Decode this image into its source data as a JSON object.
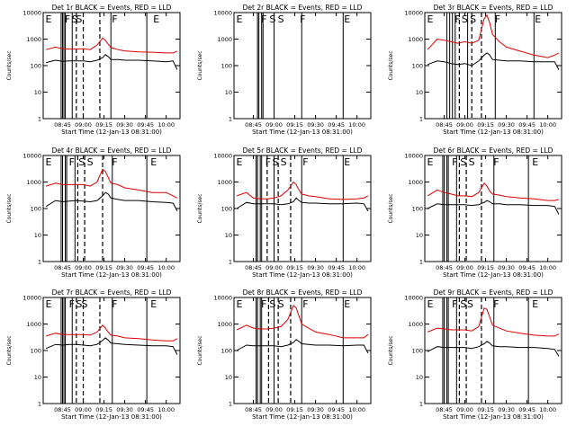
{
  "chart_data": {
    "type": "line",
    "grid": "3x3",
    "ylabel": "Counts/sec",
    "xlabel": "Start Time (12-Jan-13 08:31:00)",
    "yscale": "log",
    "ylim": [
      1,
      10000
    ],
    "xlim": [
      "08:31",
      "10:10"
    ],
    "y_ticks": [
      "1",
      "10",
      "100",
      "1000",
      "10000"
    ],
    "x_ticks": [
      "08:45",
      "09:00",
      "09:15",
      "09:30",
      "09:45",
      "10:00"
    ],
    "time_axis": [
      "08:33",
      "08:40",
      "08:45",
      "08:50",
      "08:55",
      "09:00",
      "09:05",
      "09:10",
      "09:14",
      "09:16",
      "09:18",
      "09:20",
      "09:25",
      "09:30",
      "09:40",
      "09:50",
      "10:00",
      "10:05",
      "10:08"
    ],
    "panels": [
      {
        "title": "Det 1r BLACK = Events, RED = LLD",
        "markers": [
          "E",
          "F",
          "S",
          "S",
          "F",
          "E"
        ],
        "marker_times": [
          "08:32",
          "08:46",
          "08:51",
          "08:54",
          "09:20",
          "09:50"
        ],
        "solid_lines": [
          "08:44",
          "08:45",
          "08:46",
          "08:47",
          "08:52",
          "09:20",
          "09:46"
        ],
        "dashed_lines": [
          "08:55",
          "09:00",
          "09:12"
        ],
        "series": [
          {
            "name": "BLACK",
            "color": "#000000",
            "values": [
              130,
              160,
              145,
              150,
              150,
              150,
              140,
              160,
              200,
              260,
              220,
              170,
              170,
              160,
              160,
              150,
              140,
              150,
              70
            ]
          },
          {
            "name": "RED",
            "color": "#dd0000",
            "values": [
              400,
              500,
              430,
              420,
              420,
              430,
              400,
              600,
              1100,
              900,
              650,
              480,
              400,
              360,
              330,
              320,
              300,
              300,
              350
            ]
          }
        ]
      },
      {
        "title": "Det 2r BLACK = Events, RED = LLD",
        "markers": [
          "E",
          "F",
          "S",
          "S",
          "F",
          "E"
        ],
        "marker_times": [
          "08:32",
          "08:50",
          "08:56",
          "09:02",
          "09:18",
          "09:50"
        ],
        "solid_lines": [
          "08:48",
          "08:49",
          "08:51",
          "08:52",
          "09:00",
          "09:20",
          "09:50"
        ],
        "dashed_lines": [],
        "series": []
      },
      {
        "title": "Det 3r BLACK = Events, RED = LLD",
        "markers": [
          "E",
          "F",
          "S",
          "S",
          "F",
          "E"
        ],
        "marker_times": [
          "08:32",
          "08:52",
          "08:57",
          "09:03",
          "09:21",
          "09:50"
        ],
        "solid_lines": [
          "08:47",
          "08:49",
          "08:51",
          "08:53",
          "09:02",
          "09:22",
          "09:50"
        ],
        "dashed_lines": [
          "08:56",
          "09:05",
          "09:12"
        ],
        "series": [
          {
            "name": "BLACK",
            "color": "#000000",
            "values": [
              110,
              150,
              140,
              120,
              110,
              120,
              100,
              150,
              250,
              300,
              250,
              170,
              160,
              150,
              150,
              140,
              140,
              140,
              70
            ]
          },
          {
            "name": "RED",
            "color": "#dd0000",
            "values": [
              400,
              1000,
              900,
              800,
              700,
              800,
              700,
              900,
              6000,
              8000,
              4000,
              1500,
              800,
              500,
              350,
              250,
              200,
              250,
              300
            ]
          }
        ]
      },
      {
        "title": "Det 4r BLACK = Events, RED = LLD",
        "markers": [
          "E",
          "F",
          "S",
          "S",
          "F",
          "E"
        ],
        "marker_times": [
          "08:32",
          "08:49",
          "08:56",
          "09:02",
          "09:20",
          "09:48"
        ],
        "solid_lines": [
          "08:44",
          "08:45",
          "08:47",
          "08:48",
          "08:54",
          "09:21",
          "09:46"
        ],
        "dashed_lines": [
          "08:56",
          "09:01",
          "09:14"
        ],
        "series": [
          {
            "name": "BLACK",
            "color": "#000000",
            "values": [
              120,
              200,
              180,
              190,
              200,
              190,
              180,
              200,
              300,
              400,
              350,
              250,
              220,
              200,
              200,
              180,
              170,
              160,
              80
            ]
          },
          {
            "name": "RED",
            "color": "#dd0000",
            "values": [
              700,
              900,
              800,
              800,
              800,
              800,
              700,
              1000,
              3000,
              2500,
              1500,
              900,
              800,
              600,
              500,
              400,
              400,
              300,
              250
            ]
          }
        ]
      },
      {
        "title": "Det 5r BLACK = Events, RED = LLD",
        "markers": [
          "E",
          "F",
          "S",
          "S",
          "F",
          "E"
        ],
        "marker_times": [
          "08:32",
          "08:53",
          "08:58",
          "09:04",
          "09:20",
          "09:50"
        ],
        "solid_lines": [
          "08:47",
          "08:48",
          "08:50",
          "08:51",
          "09:00",
          "09:20",
          "09:50"
        ],
        "dashed_lines": [
          "08:55",
          "09:03",
          "09:12"
        ],
        "series": [
          {
            "name": "BLACK",
            "color": "#000000",
            "values": [
              100,
              170,
              150,
              150,
              150,
              150,
              140,
              150,
              180,
              250,
              200,
              170,
              160,
              160,
              150,
              150,
              160,
              150,
              80
            ]
          },
          {
            "name": "RED",
            "color": "#dd0000",
            "values": [
              300,
              400,
              250,
              230,
              230,
              250,
              300,
              500,
              1000,
              800,
              500,
              350,
              300,
              280,
              230,
              220,
              230,
              250,
              300
            ]
          }
        ]
      },
      {
        "title": "Det 6r BLACK = Events, RED = LLD",
        "markers": [
          "E",
          "F",
          "S",
          "S",
          "F",
          "E"
        ],
        "marker_times": [
          "08:32",
          "08:50",
          "08:56",
          "09:02",
          "09:20",
          "09:48"
        ],
        "solid_lines": [
          "08:44",
          "08:45",
          "08:47",
          "08:48",
          "08:54",
          "09:21",
          "09:46"
        ],
        "dashed_lines": [
          "08:56",
          "09:01",
          "09:12"
        ],
        "series": [
          {
            "name": "BLACK",
            "color": "#000000",
            "values": [
              100,
              150,
              140,
              140,
              140,
              140,
              130,
              140,
              170,
              200,
              180,
              150,
              150,
              140,
              140,
              130,
              130,
              120,
              60
            ]
          },
          {
            "name": "RED",
            "color": "#dd0000",
            "values": [
              300,
              500,
              400,
              350,
              300,
              300,
              280,
              400,
              900,
              700,
              450,
              350,
              320,
              280,
              250,
              230,
              200,
              200,
              220
            ]
          }
        ]
      },
      {
        "title": "Det 7r BLACK = Events, RED = LLD",
        "markers": [
          "E",
          "F",
          "S",
          "S",
          "F",
          "E"
        ],
        "marker_times": [
          "08:32",
          "08:49",
          "08:54",
          "08:58",
          "09:20",
          "09:48"
        ],
        "solid_lines": [
          "08:44",
          "08:45",
          "08:46",
          "08:47",
          "08:52",
          "09:21",
          "09:46"
        ],
        "dashed_lines": [
          "08:55",
          "09:00",
          "09:12"
        ],
        "series": [
          {
            "name": "BLACK",
            "color": "#000000",
            "values": [
              120,
              170,
              160,
              170,
              170,
              160,
              150,
              170,
              240,
              300,
              250,
              190,
              180,
              170,
              160,
              150,
              150,
              140,
              70
            ]
          },
          {
            "name": "RED",
            "color": "#dd0000",
            "values": [
              350,
              450,
              400,
              400,
              400,
              400,
              380,
              500,
              900,
              700,
              500,
              380,
              350,
              300,
              280,
              250,
              230,
              230,
              280
            ]
          }
        ]
      },
      {
        "title": "Det 8r BLACK = Events, RED = LLD",
        "markers": [
          "E",
          "F",
          "S",
          "S",
          "F",
          "E"
        ],
        "marker_times": [
          "08:32",
          "08:50",
          "08:56",
          "09:02",
          "09:20",
          "09:50"
        ],
        "solid_lines": [
          "08:47",
          "08:48",
          "08:50",
          "08:51",
          "09:00",
          "09:20",
          "09:50"
        ],
        "dashed_lines": [
          "08:56",
          "09:03",
          "09:12"
        ],
        "series": [
          {
            "name": "BLACK",
            "color": "#000000",
            "values": [
              100,
              160,
              150,
              150,
              150,
              150,
              140,
              160,
              200,
              260,
              220,
              180,
              170,
              160,
              160,
              150,
              160,
              160,
              80
            ]
          },
          {
            "name": "RED",
            "color": "#dd0000",
            "values": [
              600,
              900,
              700,
              650,
              650,
              700,
              800,
              1500,
              5000,
              4000,
              2000,
              1000,
              700,
              500,
              400,
              300,
              300,
              300,
              400
            ]
          }
        ]
      },
      {
        "title": "Det 9r BLACK = Events, RED = LLD",
        "markers": [
          "E",
          "F",
          "S",
          "S",
          "F",
          "E"
        ],
        "marker_times": [
          "08:32",
          "08:50",
          "08:56",
          "09:01",
          "09:20",
          "09:48"
        ],
        "solid_lines": [
          "08:44",
          "08:45",
          "08:47",
          "08:48",
          "08:54",
          "09:21",
          "09:46"
        ],
        "dashed_lines": [
          "08:56",
          "09:01",
          "09:12"
        ],
        "series": [
          {
            "name": "BLACK",
            "color": "#000000",
            "values": [
              90,
              140,
              130,
              130,
              130,
              130,
              120,
              140,
              180,
              220,
              190,
              150,
              140,
              140,
              130,
              130,
              120,
              110,
              60
            ]
          },
          {
            "name": "RED",
            "color": "#dd0000",
            "values": [
              500,
              700,
              650,
              600,
              600,
              600,
              550,
              800,
              4000,
              3500,
              1800,
              900,
              700,
              550,
              450,
              380,
              350,
              350,
              420
            ]
          }
        ]
      }
    ]
  }
}
